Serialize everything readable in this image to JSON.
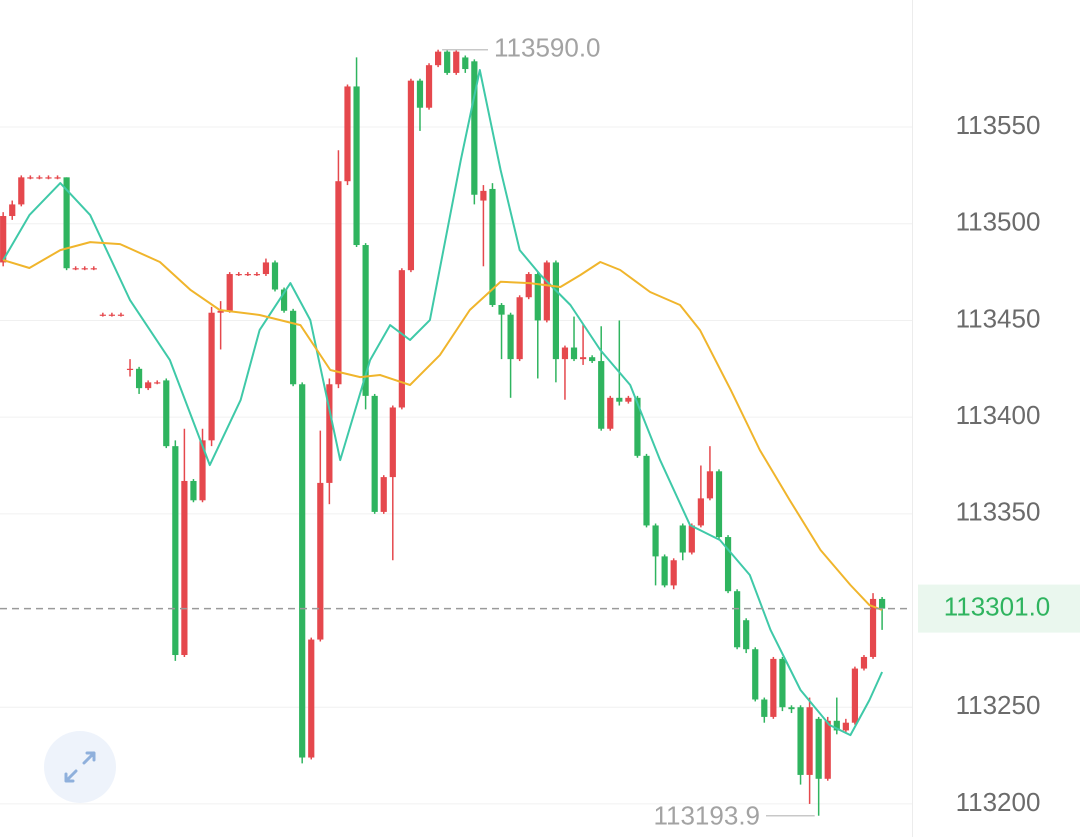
{
  "chart_data": {
    "type": "candlestick",
    "open": [
      113480,
      113504,
      113510,
      113524,
      113524,
      113524,
      113524,
      113524,
      113477,
      113477,
      113477,
      113453,
      113453,
      113453,
      113425,
      113425,
      113415,
      113418,
      113419,
      113385,
      113277,
      113367,
      113357,
      113388,
      113454,
      113455,
      113474,
      113474,
      113474,
      113474,
      113480,
      113466,
      113455,
      113417,
      113224,
      113285,
      113366,
      113417,
      113522,
      113571,
      113489,
      113411,
      113351,
      113369,
      113405,
      113476,
      113574,
      113560,
      113582,
      113589,
      113578,
      113586,
      113584,
      113512,
      113518,
      113458,
      113453,
      113430,
      113462,
      113474,
      113450,
      113480,
      113430,
      113436,
      113430,
      113431,
      113429,
      113394,
      113410,
      113408,
      113410,
      113380,
      113344,
      113328,
      113313,
      113344,
      113330,
      113344,
      113358,
      113372,
      113338,
      113310,
      113295,
      113280,
      113254,
      113245,
      113275,
      113250,
      113250,
      113215,
      113244,
      113213,
      113243,
      113238,
      113242,
      113270,
      113276,
      113306
    ],
    "high": [
      113506,
      113512,
      113525,
      113525,
      113525,
      113525,
      113525,
      113524,
      113478,
      113478,
      113478,
      113454,
      113454,
      113454,
      113430,
      113426,
      113419,
      113419,
      113420,
      113388,
      113394,
      113368,
      113394,
      113457,
      113460,
      113475,
      113475,
      113475,
      113475,
      113482,
      113481,
      113467,
      113456,
      113418,
      113286,
      113393,
      113420,
      113538,
      113572,
      113586,
      113490,
      113412,
      113370,
      113406,
      113477,
      113575,
      113575,
      113583,
      113590,
      113590,
      113590,
      113587,
      113585,
      113520,
      113521,
      113459,
      113454,
      113463,
      113475,
      113475,
      113481,
      113481,
      113437,
      113452,
      113448,
      113432,
      113447,
      113411,
      113450,
      113411,
      113411,
      113381,
      113345,
      113329,
      113327,
      113345,
      113345,
      113375,
      113385,
      113373,
      113339,
      113311,
      113296,
      113281,
      113255,
      113276,
      113276,
      113251,
      113251,
      113255,
      113245,
      113245,
      113255,
      113244,
      113271,
      113277,
      113309,
      113307
    ],
    "low": [
      113478,
      113502,
      113509,
      113523,
      113523,
      113523,
      113523,
      113476,
      113476,
      113476,
      113476,
      113452,
      113452,
      113452,
      113421,
      113412,
      113414,
      113417,
      113384,
      113274,
      113276,
      113356,
      113356,
      113385,
      113435,
      113454,
      113473,
      113473,
      113473,
      113473,
      113465,
      113454,
      113416,
      113221,
      113223,
      113284,
      113355,
      113415,
      113520,
      113488,
      113404,
      113350,
      113350,
      113326,
      113404,
      113475,
      113548,
      113559,
      113581,
      113577,
      113577,
      113578,
      113510,
      113478,
      113457,
      113430,
      113410,
      113429,
      113461,
      113420,
      113449,
      113418,
      113409,
      113429,
      113427,
      113428,
      113393,
      113393,
      113406,
      113407,
      113379,
      113343,
      113313,
      113312,
      113311,
      113326,
      113329,
      113343,
      113357,
      113337,
      113309,
      113280,
      113278,
      113253,
      113242,
      113244,
      113248,
      113247,
      113210,
      113200,
      113193.9,
      113212,
      113236,
      113237,
      113241,
      113269,
      113275,
      113290
    ],
    "close": [
      113504,
      113510,
      113524,
      113524,
      113524,
      113524,
      113524,
      113477,
      113477,
      113477,
      113477,
      113453,
      113453,
      113453,
      113425,
      113415,
      113418,
      113418,
      113385,
      113277,
      113367,
      113357,
      113388,
      113454,
      113455,
      113474,
      113474,
      113474,
      113474,
      113480,
      113466,
      113455,
      113417,
      113224,
      113285,
      113366,
      113417,
      113522,
      113571,
      113489,
      113411,
      113351,
      113369,
      113405,
      113476,
      113574,
      113560,
      113582,
      113589,
      113578,
      113589,
      113580,
      113515,
      113517,
      113458,
      113453,
      113430,
      113462,
      113474,
      113450,
      113480,
      113430,
      113436,
      113430,
      113431,
      113429,
      113394,
      113410,
      113408,
      113410,
      113380,
      113344,
      113328,
      113313,
      113326,
      113330,
      113344,
      113358,
      113372,
      113338,
      113310,
      113281,
      113280,
      113254,
      113245,
      113275,
      113250,
      113249,
      113215,
      113250,
      113213,
      113243,
      113238,
      113242,
      113270,
      113276,
      113306,
      113301
    ],
    "up_color": "#e5484d",
    "down_color": "#2fb45f",
    "series": [
      {
        "color": "#3fc9a8",
        "x": [
          0,
          2.9,
          6.3,
          9.6,
          14.0,
          18.4,
          22.8,
          26.2,
          28.3,
          31.7,
          33.9,
          37.2,
          40.5,
          42.7,
          44.9,
          47.1,
          50.5,
          52.6,
          54.9,
          57.0,
          59.3,
          62.6,
          65.9,
          69.2,
          72.5,
          75.8,
          79.1,
          82.4,
          84.7,
          88.0,
          91.2,
          93.5,
          95.6,
          97.0
        ],
        "values": [
          113481.2,
          113504.5,
          113521.0,
          113504.5,
          113460.5,
          113429.5,
          113375.2,
          113408.8,
          113445.0,
          113469.3,
          113450.2,
          113377.8,
          113429.5,
          113447.6,
          113439.9,
          113450.2,
          113532.9,
          113579.5,
          113527.8,
          113486.4,
          113473.5,
          113458.0,
          113434.7,
          113416.6,
          113377.8,
          113344.2,
          113336.5,
          113318.4,
          113289.9,
          113258.9,
          113240.8,
          113235.6,
          113253.7,
          113268.2
        ]
      },
      {
        "color": "#f0b52c",
        "x": [
          0,
          2.9,
          6.3,
          9.6,
          12.9,
          17.3,
          20.7,
          23.9,
          28.3,
          32.8,
          36.1,
          39.4,
          41.6,
          44.9,
          48.2,
          51.5,
          54.9,
          58.1,
          61.5,
          63.7,
          65.9,
          68.1,
          71.4,
          74.7,
          76.9,
          80.3,
          83.5,
          86.8,
          90.2,
          93.5,
          95.6,
          97.0
        ],
        "values": [
          113481.2,
          113477.1,
          113486.4,
          113490.5,
          113489.5,
          113480.2,
          113465.7,
          113455.4,
          113452.8,
          113447.6,
          113424.4,
          113420.7,
          113421.8,
          113416.6,
          113432.1,
          113455.4,
          113470.0,
          113469.3,
          113467.3,
          113473.5,
          113480.2,
          113476.1,
          113464.7,
          113458.0,
          113445.0,
          113414.0,
          113383.0,
          113357.1,
          113331.3,
          113313.2,
          113302.8,
          113300.3
        ]
      }
    ],
    "xlim": [
      -0.35,
      100.3
    ],
    "ylim": [
      113182.9,
      113615.7
    ],
    "yticks": [
      113200,
      113250,
      113350,
      113400,
      113450,
      113500,
      113550
    ],
    "grid": true,
    "current_price": {
      "value": 113301,
      "label": "113301.0"
    },
    "high_annotation": {
      "value": 113590,
      "label": "113590.0"
    },
    "low_annotation": {
      "value": 113193.9,
      "label": "113193.9"
    }
  }
}
